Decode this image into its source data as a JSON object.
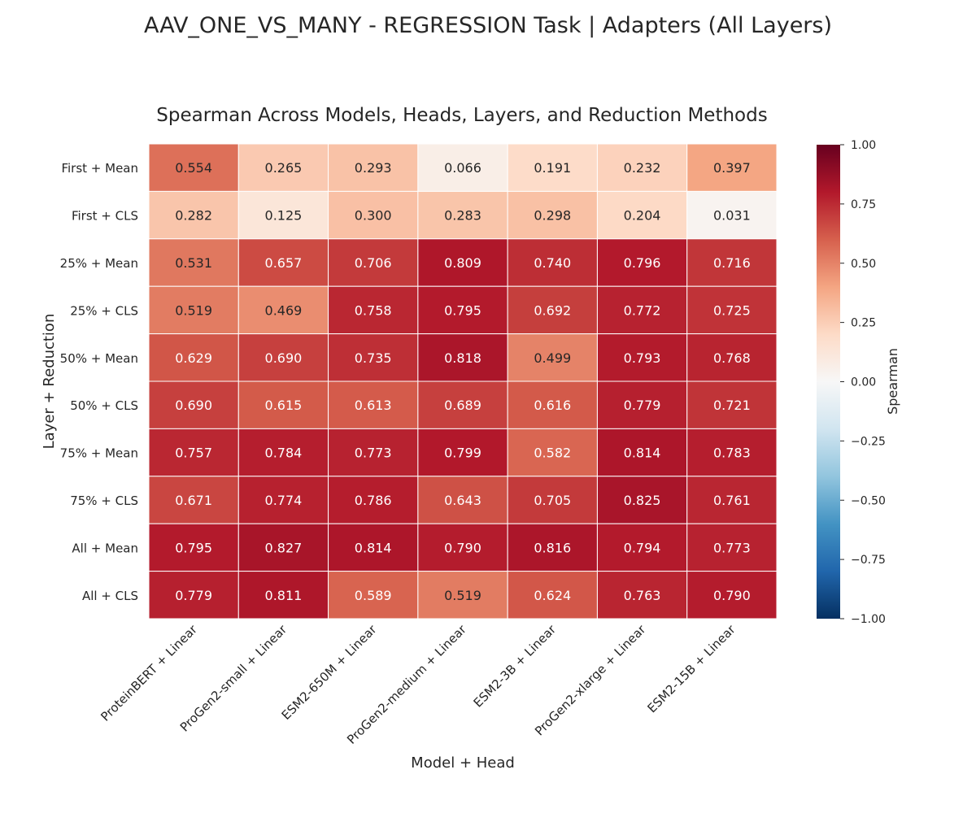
{
  "figure": {
    "suptitle": "AAV_ONE_VS_MANY - REGRESSION Task | Adapters (All Layers)"
  },
  "chart_data": {
    "type": "heatmap",
    "title": "Spearman Across Models, Heads, Layers, and Reduction Methods",
    "xlabel": "Model + Head",
    "ylabel": "Layer + Reduction",
    "x_categories": [
      "ProteinBERT + Linear",
      "ProGen2-small + Linear",
      "ESM2-650M + Linear",
      "ProGen2-medium + Linear",
      "ESM2-3B + Linear",
      "ProGen2-xlarge + Linear",
      "ESM2-15B + Linear"
    ],
    "y_categories": [
      "First + Mean",
      "First + CLS",
      "25% + Mean",
      "25% + CLS",
      "50% + Mean",
      "50% + CLS",
      "75% + Mean",
      "75% + CLS",
      "All + Mean",
      "All + CLS"
    ],
    "values": [
      [
        0.554,
        0.265,
        0.293,
        0.066,
        0.191,
        0.232,
        0.397
      ],
      [
        0.282,
        0.125,
        0.3,
        0.283,
        0.298,
        0.204,
        0.031
      ],
      [
        0.531,
        0.657,
        0.706,
        0.809,
        0.74,
        0.796,
        0.716
      ],
      [
        0.519,
        0.469,
        0.758,
        0.795,
        0.692,
        0.772,
        0.725
      ],
      [
        0.629,
        0.69,
        0.735,
        0.818,
        0.499,
        0.793,
        0.768
      ],
      [
        0.69,
        0.615,
        0.613,
        0.689,
        0.616,
        0.779,
        0.721
      ],
      [
        0.757,
        0.784,
        0.773,
        0.799,
        0.582,
        0.814,
        0.783
      ],
      [
        0.671,
        0.774,
        0.786,
        0.643,
        0.705,
        0.825,
        0.761
      ],
      [
        0.795,
        0.827,
        0.814,
        0.79,
        0.816,
        0.794,
        0.773
      ],
      [
        0.779,
        0.811,
        0.589,
        0.519,
        0.624,
        0.763,
        0.79
      ]
    ],
    "value_format": "3 decimals",
    "colorbar": {
      "label": "Spearman",
      "colormap": "RdBu_r",
      "range": [
        -1.0,
        1.0
      ],
      "ticks": [
        "1.00",
        "0.75",
        "0.50",
        "0.25",
        "0.00",
        "−0.25",
        "−0.50",
        "−0.75",
        "−1.00"
      ],
      "tick_values": [
        1.0,
        0.75,
        0.5,
        0.25,
        0.0,
        -0.25,
        -0.5,
        -0.75,
        -1.0
      ]
    },
    "grid": false,
    "cell_border_color": "#ffffff"
  }
}
